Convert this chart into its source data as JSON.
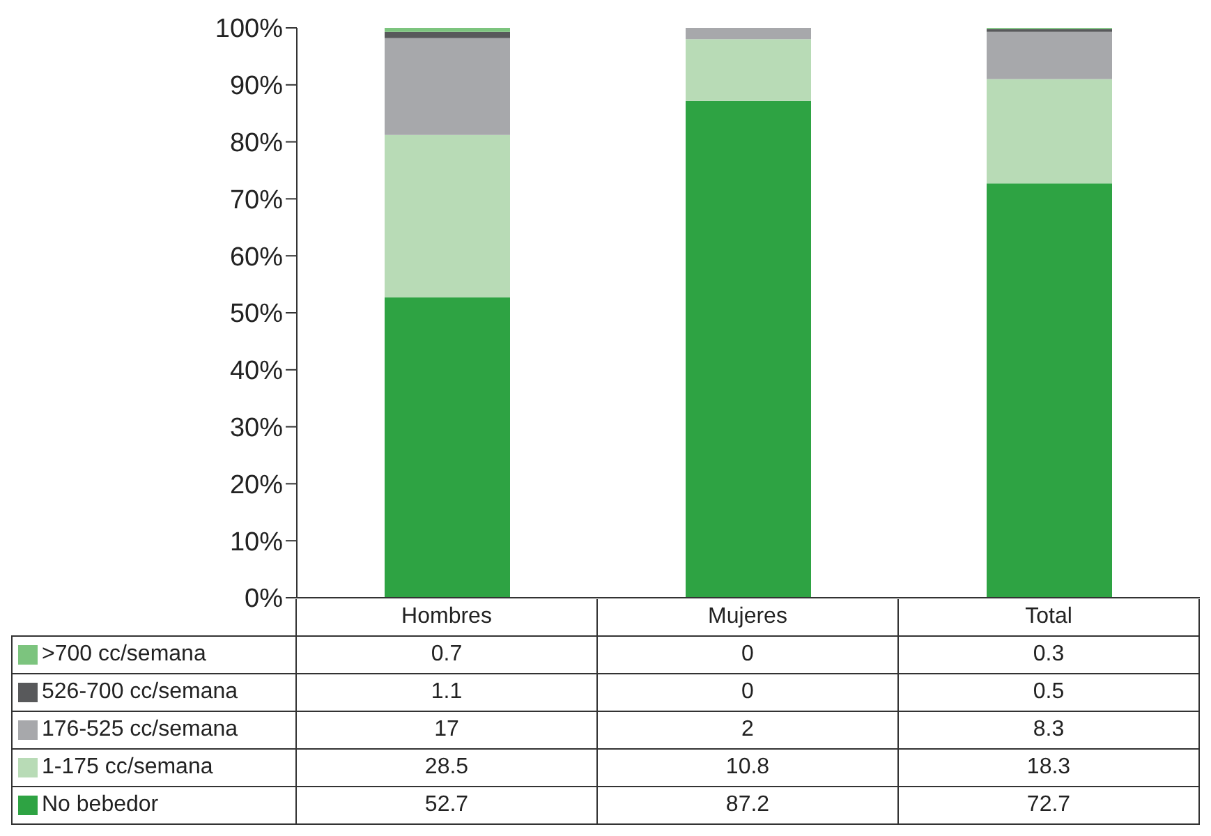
{
  "chart_data": {
    "type": "bar",
    "stacked": true,
    "categories": [
      "Hombres",
      "Mujeres",
      "Total"
    ],
    "series": [
      {
        "name": "No bebedor",
        "color": "#2ea343",
        "values": [
          52.7,
          87.2,
          72.7
        ]
      },
      {
        "name": "1-175 cc/semana",
        "color": "#b8dbb6",
        "values": [
          28.5,
          10.8,
          18.3
        ]
      },
      {
        "name": "176-525 cc/semana",
        "color": "#a7a8ab",
        "values": [
          17,
          2,
          8.3
        ]
      },
      {
        "name": "526-700 cc/semana",
        "color": "#58595b",
        "values": [
          1.1,
          0,
          0.5
        ]
      },
      {
        "name": ">700 cc/semana",
        "color": "#7cc47e",
        "values": [
          0.7,
          0,
          0.3
        ]
      }
    ],
    "ylim": [
      0,
      100
    ],
    "yticks": [
      {
        "value": 0,
        "label": "0%"
      },
      {
        "value": 10,
        "label": "10%"
      },
      {
        "value": 20,
        "label": "20%"
      },
      {
        "value": 30,
        "label": "30%"
      },
      {
        "value": 40,
        "label": "40%"
      },
      {
        "value": 50,
        "label": "50%"
      },
      {
        "value": 60,
        "label": "60%"
      },
      {
        "value": 70,
        "label": "70%"
      },
      {
        "value": 80,
        "label": "80%"
      },
      {
        "value": 90,
        "label": "90%"
      },
      {
        "value": 100,
        "label": "100%"
      }
    ],
    "data_labels": true,
    "legend": "bottom",
    "grid": false
  }
}
